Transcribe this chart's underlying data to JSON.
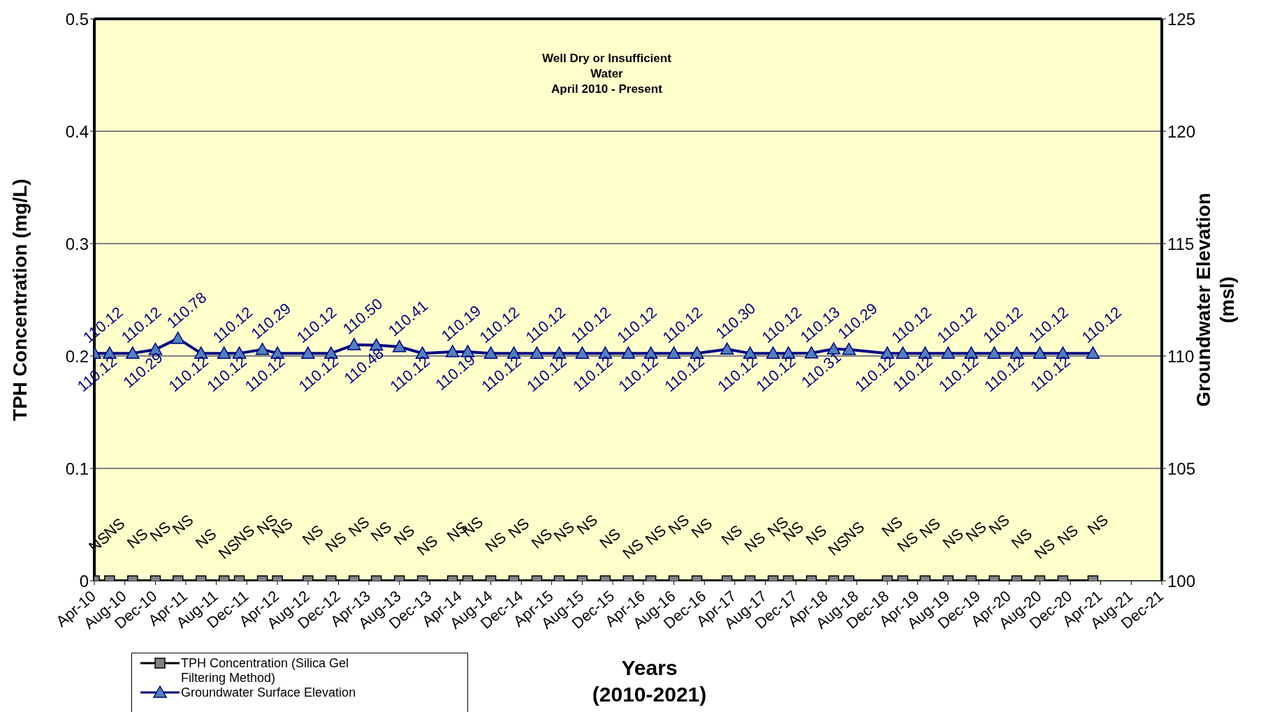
{
  "chart_data": {
    "type": "line",
    "title": null,
    "xlabel": "Years\n(2010-2021)",
    "ylabel": "TPH Concentration (mg/L)",
    "y2label": "Groundwater Elevation\n(msl)",
    "annotations": [
      "Well Dry or Insufficient\nWater\nApril 2010 - Present"
    ],
    "x": [
      "2010-04",
      "2010-06",
      "2010-09",
      "2010-12",
      "2011-03",
      "2011-06",
      "2011-09",
      "2011-11",
      "2012-02",
      "2012-04",
      "2012-08",
      "2012-11",
      "2013-02",
      "2013-05",
      "2013-08",
      "2013-11",
      "2014-03",
      "2014-05",
      "2014-08",
      "2014-11",
      "2015-02",
      "2015-05",
      "2015-08",
      "2015-11",
      "2016-02",
      "2016-05",
      "2016-08",
      "2016-11",
      "2017-03",
      "2017-06",
      "2017-09",
      "2017-11",
      "2018-02",
      "2018-05",
      "2018-07",
      "2018-12",
      "2019-02",
      "2019-05",
      "2019-08",
      "2019-11",
      "2020-02",
      "2020-05",
      "2020-08",
      "2020-11",
      "2021-03"
    ],
    "series": [
      {
        "name": "TPH Concentration (Silica Gel Filtering Method)",
        "color": "#000000",
        "marker": "square",
        "values": [
          0,
          0,
          0,
          0,
          0,
          0,
          0,
          0,
          0,
          0,
          0,
          0,
          0,
          0,
          0,
          0,
          0,
          0,
          0,
          0,
          0,
          0,
          0,
          0,
          0,
          0,
          0,
          0,
          0,
          0,
          0,
          0,
          0,
          0,
          0,
          0,
          0,
          0,
          0,
          0,
          0,
          0,
          0,
          0,
          0
        ],
        "value_labels": [
          "NS",
          "NS",
          "NS",
          "NS",
          "NS",
          "NS",
          "NS",
          "NS",
          "NS",
          "NS",
          "NS",
          "NS",
          "NS",
          "NS",
          "NS",
          "NS",
          "NS",
          "NS",
          "NS",
          "NS",
          "NS",
          "NS",
          "NS",
          "NS",
          "NS",
          "NS",
          "NS",
          "NS",
          "NS",
          "NS",
          "NS",
          "NS",
          "NS",
          "NS",
          "NS",
          "NS",
          "NS",
          "NS",
          "NS",
          "NS",
          "NS",
          "NS",
          "NS",
          "NS",
          "NS"
        ]
      },
      {
        "name": "Groundwater Surface Elevation",
        "color": "#000080",
        "marker": "triangle",
        "axis": "y2",
        "values": [
          110.12,
          110.12,
          110.12,
          110.29,
          110.78,
          110.12,
          110.12,
          110.12,
          110.29,
          110.12,
          110.12,
          110.12,
          110.5,
          110.48,
          110.41,
          110.12,
          110.19,
          110.19,
          110.12,
          110.12,
          110.12,
          110.12,
          110.12,
          110.12,
          110.12,
          110.12,
          110.12,
          110.12,
          110.3,
          110.12,
          110.12,
          110.12,
          110.13,
          110.31,
          110.29,
          110.12,
          110.12,
          110.12,
          110.12,
          110.12,
          110.12,
          110.12,
          110.12,
          110.12,
          110.12
        ],
        "value_labels": [
          "110.12",
          "110.12",
          "110.12",
          "110.29",
          "110.78",
          "110.12",
          "110.12",
          "110.12",
          "110.29",
          "110.12",
          "110.12",
          "110.12",
          "110.50",
          "110.48",
          "110.41",
          "110.12",
          "110.19",
          "110.19",
          "110.12",
          "110.12",
          "110.12",
          "110.12",
          "110.12",
          "110.12",
          "110.12",
          "110.12",
          "110.12",
          "110.12",
          "110.30",
          "110.12",
          "110.12",
          "110.12",
          "110.13",
          "110.31",
          "110.29",
          "110.12",
          "110.12",
          "110.12",
          "110.12",
          "110.12",
          "110.12",
          "110.12",
          "110.12",
          "110.12",
          "110.12"
        ]
      }
    ],
    "xlim": [
      "2010-04",
      "2021-12"
    ],
    "xticks": [
      {
        "value": "2010-04",
        "label": "Apr-10"
      },
      {
        "value": "2010-08",
        "label": "Aug-10"
      },
      {
        "value": "2010-12",
        "label": "Dec-10"
      },
      {
        "value": "2011-04",
        "label": "Apr-11"
      },
      {
        "value": "2011-08",
        "label": "Aug-11"
      },
      {
        "value": "2011-12",
        "label": "Dec-11"
      },
      {
        "value": "2012-04",
        "label": "Apr-12"
      },
      {
        "value": "2012-08",
        "label": "Aug-12"
      },
      {
        "value": "2012-12",
        "label": "Dec-12"
      },
      {
        "value": "2013-04",
        "label": "Apr-13"
      },
      {
        "value": "2013-08",
        "label": "Aug-13"
      },
      {
        "value": "2013-12",
        "label": "Dec-13"
      },
      {
        "value": "2014-04",
        "label": "Apr-14"
      },
      {
        "value": "2014-08",
        "label": "Aug-14"
      },
      {
        "value": "2014-12",
        "label": "Dec-14"
      },
      {
        "value": "2015-04",
        "label": "Apr-15"
      },
      {
        "value": "2015-08",
        "label": "Aug-15"
      },
      {
        "value": "2015-12",
        "label": "Dec-15"
      },
      {
        "value": "2016-04",
        "label": "Apr-16"
      },
      {
        "value": "2016-08",
        "label": "Aug-16"
      },
      {
        "value": "2016-12",
        "label": "Dec-16"
      },
      {
        "value": "2017-04",
        "label": "Apr-17"
      },
      {
        "value": "2017-08",
        "label": "Aug-17"
      },
      {
        "value": "2017-12",
        "label": "Dec-17"
      },
      {
        "value": "2018-04",
        "label": "Apr-18"
      },
      {
        "value": "2018-08",
        "label": "Aug-18"
      },
      {
        "value": "2018-12",
        "label": "Dec-18"
      },
      {
        "value": "2019-04",
        "label": "Apr-19"
      },
      {
        "value": "2019-08",
        "label": "Aug-19"
      },
      {
        "value": "2019-12",
        "label": "Dec-19"
      },
      {
        "value": "2020-04",
        "label": "Apr-20"
      },
      {
        "value": "2020-08",
        "label": "Aug-20"
      },
      {
        "value": "2020-12",
        "label": "Dec-20"
      },
      {
        "value": "2021-04",
        "label": "Apr-21"
      },
      {
        "value": "2021-08",
        "label": "Aug-21"
      },
      {
        "value": "2021-12",
        "label": "Dec-21"
      }
    ],
    "ylim": [
      0,
      0.5
    ],
    "yticks": [
      0,
      0.1,
      0.2,
      0.3,
      0.4,
      0.5
    ],
    "y2lim": [
      100,
      125
    ],
    "y2ticks": [
      100,
      105,
      110,
      115,
      120,
      125
    ],
    "grid": "y",
    "legend": "bottom left",
    "line_style": "solid"
  }
}
